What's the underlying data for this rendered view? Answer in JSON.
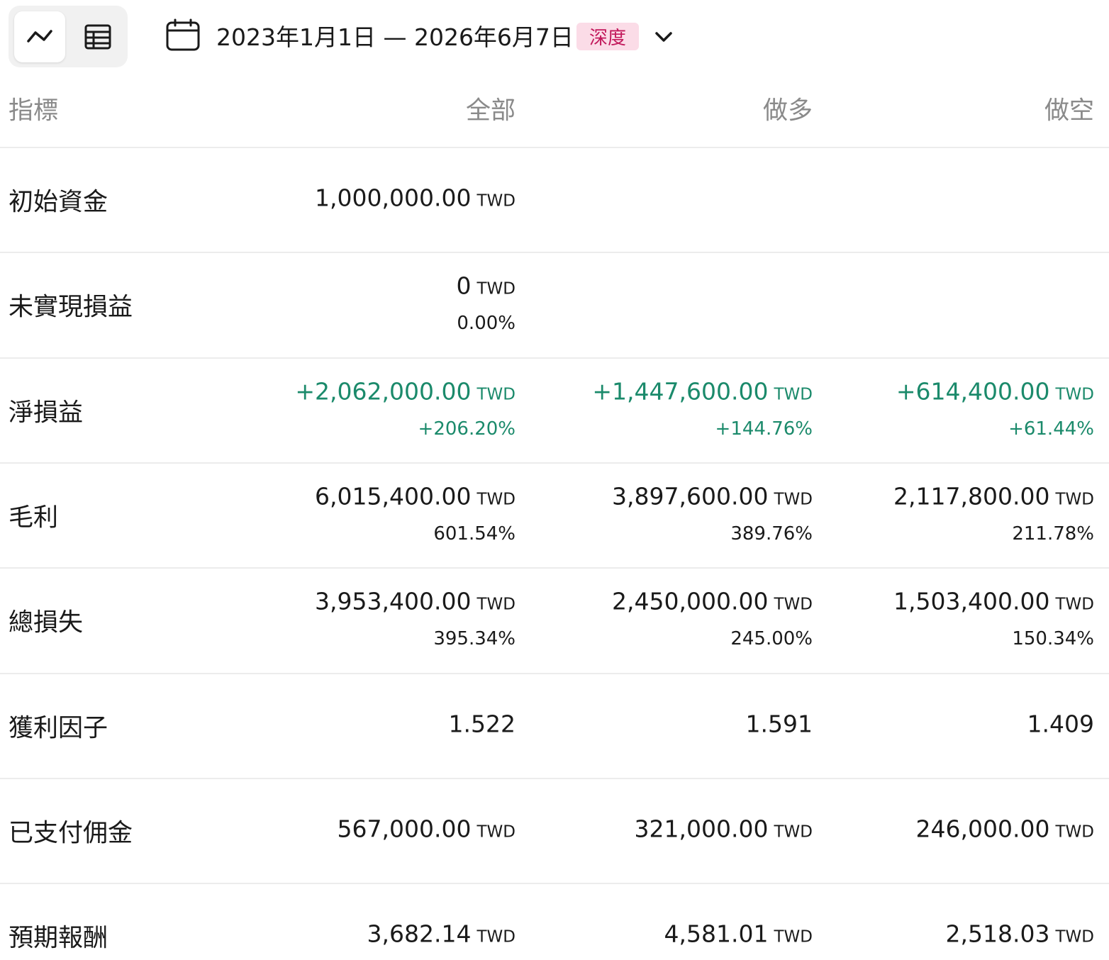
{
  "toolbar": {
    "date_range": "2023年1月1日 — 2026年6月7日",
    "badge": "深度"
  },
  "table": {
    "header": [
      "指標",
      "全部",
      "做多",
      "做空"
    ],
    "rows": [
      {
        "label": "初始資金",
        "cells": [
          {
            "amount": "1,000,000.00",
            "unit": "TWD"
          }
        ]
      },
      {
        "label": "未實現損益",
        "cells": [
          {
            "amount": "0",
            "unit": "TWD",
            "percent": "0.00%"
          }
        ]
      },
      {
        "label": "淨損益",
        "color": "#1b8a6b",
        "cells": [
          {
            "amount": "+2,062,000.00",
            "unit": "TWD",
            "percent": "+206.20%"
          },
          {
            "amount": "+1,447,600.00",
            "unit": "TWD",
            "percent": "+144.76%"
          },
          {
            "amount": "+614,400.00",
            "unit": "TWD",
            "percent": "+61.44%"
          }
        ]
      },
      {
        "label": "毛利",
        "cells": [
          {
            "amount": "6,015,400.00",
            "unit": "TWD",
            "percent": "601.54%"
          },
          {
            "amount": "3,897,600.00",
            "unit": "TWD",
            "percent": "389.76%"
          },
          {
            "amount": "2,117,800.00",
            "unit": "TWD",
            "percent": "211.78%"
          }
        ]
      },
      {
        "label": "總損失",
        "cells": [
          {
            "amount": "3,953,400.00",
            "unit": "TWD",
            "percent": "395.34%"
          },
          {
            "amount": "2,450,000.00",
            "unit": "TWD",
            "percent": "245.00%"
          },
          {
            "amount": "1,503,400.00",
            "unit": "TWD",
            "percent": "150.34%"
          }
        ]
      },
      {
        "label": "獲利因子",
        "cells": [
          {
            "amount": "1.522"
          },
          {
            "amount": "1.591"
          },
          {
            "amount": "1.409"
          }
        ]
      },
      {
        "label": "已支付佣金",
        "cells": [
          {
            "amount": "567,000.00",
            "unit": "TWD"
          },
          {
            "amount": "321,000.00",
            "unit": "TWD"
          },
          {
            "amount": "246,000.00",
            "unit": "TWD"
          }
        ]
      },
      {
        "label": "預期報酬",
        "cells": [
          {
            "amount": "3,682.14",
            "unit": "TWD"
          },
          {
            "amount": "4,581.01",
            "unit": "TWD"
          },
          {
            "amount": "2,518.03",
            "unit": "TWD"
          }
        ]
      }
    ]
  }
}
